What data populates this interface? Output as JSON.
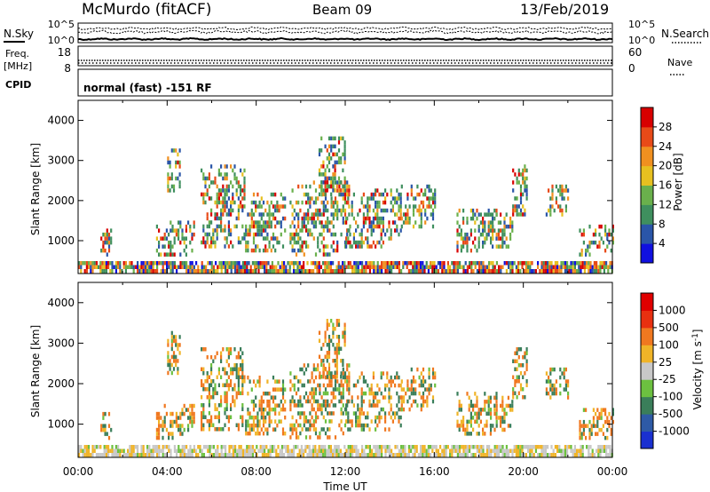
{
  "header": {
    "station": "McMurdo (fitACF)",
    "beam": "Beam 09",
    "date": "13/Feb/2019"
  },
  "status_panels": {
    "nsky_label": "N.Sky",
    "nsearch_label": "N.Search",
    "noise_ticks_left": [
      "10^5",
      "10^0"
    ],
    "noise_ticks_right": [
      "10^5",
      "10^0"
    ],
    "freq_label_1": "Freq.",
    "freq_label_2": "[MHz]",
    "freq_ticks": [
      "18",
      "8"
    ],
    "nave_label": "Nave",
    "nave_ticks": [
      "60",
      "0"
    ],
    "cpid_label": "CPID",
    "cpid_value": "normal (fast) -151 RF"
  },
  "chart_data": [
    {
      "type": "heatmap",
      "name": "Power",
      "ylabel": "Slant Range [km]",
      "y_ticks": [
        "4000",
        "3000",
        "2000",
        "1000"
      ],
      "ylim": [
        180,
        4500
      ],
      "xlim": [
        "00:00",
        "24:00"
      ],
      "colorbar_label": "Power [dB]",
      "colorbar_ticks": [
        "28",
        "24",
        "20",
        "16",
        "12",
        "8",
        "4"
      ],
      "colorbar_colors": [
        "#1010e0",
        "#2a55a8",
        "#3f8f5e",
        "#6ab04c",
        "#e7c020",
        "#f09020",
        "#e84a18",
        "#d80000"
      ],
      "scatter_bands_range_km": [
        [
          1.0,
          1.5,
          700,
          1300
        ],
        [
          3.5,
          5.2,
          700,
          1500
        ],
        [
          4.0,
          4.6,
          2300,
          3300
        ],
        [
          5.5,
          7.5,
          900,
          2900
        ],
        [
          7.5,
          9.3,
          800,
          2200
        ],
        [
          9.5,
          12.2,
          700,
          2500
        ],
        [
          10.8,
          12.0,
          2200,
          3600
        ],
        [
          12.0,
          14.5,
          900,
          2300
        ],
        [
          14.5,
          16.0,
          1400,
          2400
        ],
        [
          17.0,
          18.8,
          800,
          1800
        ],
        [
          18.5,
          19.5,
          900,
          1700
        ],
        [
          19.5,
          20.2,
          1700,
          2900
        ],
        [
          21.0,
          22.0,
          1700,
          2400
        ],
        [
          22.5,
          24.0,
          700,
          1400
        ]
      ]
    },
    {
      "type": "heatmap",
      "name": "Velocity",
      "ylabel": "Slant Range [km]",
      "y_ticks": [
        "4000",
        "3000",
        "2000",
        "1000"
      ],
      "ylim": [
        180,
        4500
      ],
      "xlim": [
        "00:00",
        "24:00"
      ],
      "x_ticks": [
        "00:00",
        "04:00",
        "08:00",
        "12:00",
        "16:00",
        "20:00",
        "00:00"
      ],
      "xlabel": "Time UT",
      "colorbar_label": "Velocity [m s",
      "colorbar_label_sup": "-1",
      "colorbar_label_end": "]",
      "colorbar_ticks": [
        "1000",
        "500",
        "100",
        "25",
        "-25",
        "-100",
        "-500",
        "-1000"
      ],
      "colorbar_colors": [
        "#1a30d0",
        "#2e5aa6",
        "#3a7e5a",
        "#6cc040",
        "#c8c8c8",
        "#f0b428",
        "#f07820",
        "#e83010",
        "#e00000"
      ],
      "scatter_bands_range_km": [
        [
          1.0,
          1.5,
          700,
          1300
        ],
        [
          3.5,
          5.2,
          700,
          1500
        ],
        [
          4.0,
          4.6,
          2300,
          3300
        ],
        [
          5.5,
          7.5,
          900,
          2900
        ],
        [
          7.5,
          9.3,
          800,
          2200
        ],
        [
          9.5,
          12.2,
          700,
          2500
        ],
        [
          10.8,
          12.0,
          2200,
          3600
        ],
        [
          12.0,
          14.5,
          900,
          2300
        ],
        [
          14.5,
          16.0,
          1400,
          2400
        ],
        [
          17.0,
          18.8,
          800,
          1800
        ],
        [
          18.5,
          19.5,
          900,
          1700
        ],
        [
          19.5,
          20.2,
          1700,
          2900
        ],
        [
          21.0,
          22.0,
          1700,
          2400
        ],
        [
          22.5,
          24.0,
          700,
          1400
        ]
      ]
    }
  ]
}
